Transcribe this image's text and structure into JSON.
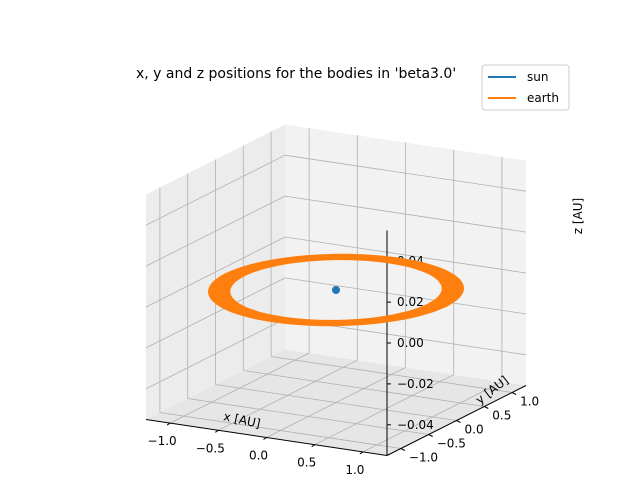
{
  "chart_data": {
    "type": "line3d",
    "title": "x, y and z positions for the bodies in 'beta3.0'",
    "xlabel": "x [AU]",
    "ylabel": "y [AU]",
    "zlabel": "z [AU]",
    "xlim": [
      -1.25,
      1.25
    ],
    "ylim": [
      -1.25,
      1.25
    ],
    "zlim": [
      -0.055,
      0.055
    ],
    "xticks": [
      "−1.0",
      "−0.5",
      "0.0",
      "0.5",
      "1.0"
    ],
    "yticks": [
      "−1.0",
      "−0.5",
      "0.0",
      "0.5",
      "1.0"
    ],
    "zticks": [
      "−0.04",
      "−0.02",
      "0.00",
      "0.02",
      "0.04"
    ],
    "grid": true,
    "legend_position": "top-right",
    "series": [
      {
        "name": "sun",
        "color": "#1f77b4",
        "shape": "point",
        "x": 0.0,
        "y": 0.0,
        "z": 0.0
      },
      {
        "name": "earth",
        "color": "#ff7f0e",
        "shape": "orbit-band",
        "inner_radius": 0.95,
        "outer_radius": 1.15,
        "z": 0.0
      }
    ]
  }
}
